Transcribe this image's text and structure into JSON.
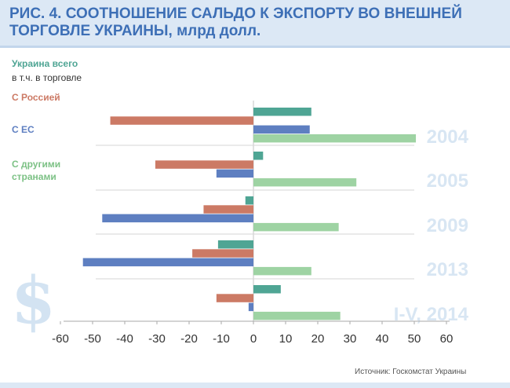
{
  "title": "РИС. 4. СООТНОШЕНИЕ САЛЬДО К ЭКСПОРТУ ВО ВНЕШНЕЙ ТОРГОВЛЕ УКРАИНЫ, млрд долл.",
  "source": "Источник: Госкомстат Украины",
  "decor_icon": "dollar-sign-icon",
  "legend": {
    "total": "Украина всего",
    "subtitle": "в т.ч. в торговле",
    "russia": "С Россией",
    "eu": "С ЕС",
    "other_line1": "С другими",
    "other_line2": "странами"
  },
  "colors": {
    "total": "#4fa594",
    "russia": "#cc7a65",
    "eu": "#5e7fc1",
    "other": "#9ed3a3",
    "title": "#3d6fb6",
    "year_label": "#d8e6f3"
  },
  "chart_data": {
    "type": "bar",
    "orientation": "horizontal",
    "categories": [
      "2004",
      "2005",
      "2009",
      "2013",
      "I-V, 2014"
    ],
    "series": [
      {
        "name": "Украина всего",
        "values": [
          18,
          3,
          -2.5,
          -11,
          8.5
        ]
      },
      {
        "name": "С Россией",
        "values": [
          -44.5,
          -30.5,
          -15.5,
          -19,
          -11.5
        ]
      },
      {
        "name": "С ЕС",
        "values": [
          17.5,
          -11.5,
          -47,
          -53,
          -1.5
        ]
      },
      {
        "name": "С другими странами",
        "values": [
          50.5,
          32,
          26.5,
          18,
          27
        ]
      }
    ],
    "xlim": [
      -60,
      60
    ],
    "xticks": [
      "-60",
      "-50",
      "-40",
      "-30",
      "-20",
      "-10",
      "0",
      "10",
      "20",
      "30",
      "40",
      "50",
      "60"
    ],
    "grid": false,
    "legend_position": "left"
  }
}
